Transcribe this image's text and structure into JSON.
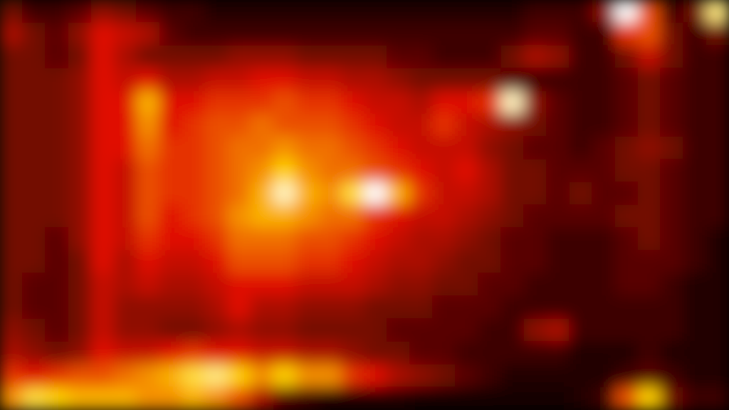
{
  "chart_data": {
    "type": "heatmap",
    "tick_labels": false,
    "zlim": [
      0,
      1
    ],
    "z": [
      [
        0.3,
        0.2,
        0.2,
        0.25,
        0.35,
        0.3,
        0.25,
        0.2,
        0.2,
        0.15,
        0.15,
        0.15,
        0.15,
        0.15,
        0.15,
        0.15,
        0.15,
        0.15,
        0.15,
        0.15,
        0.15,
        0.15,
        0.15,
        0.2,
        0.2,
        0.2,
        0.35,
        1.0,
        0.6,
        0.2,
        0.3,
        0.9
      ],
      [
        0.4,
        0.3,
        0.25,
        0.35,
        0.5,
        0.45,
        0.4,
        0.25,
        0.2,
        0.2,
        0.2,
        0.2,
        0.2,
        0.2,
        0.2,
        0.2,
        0.2,
        0.2,
        0.2,
        0.2,
        0.2,
        0.2,
        0.2,
        0.25,
        0.25,
        0.2,
        0.2,
        0.55,
        0.6,
        0.3,
        0.2,
        0.3
      ],
      [
        0.3,
        0.3,
        0.25,
        0.3,
        0.5,
        0.4,
        0.3,
        0.3,
        0.3,
        0.3,
        0.35,
        0.35,
        0.35,
        0.3,
        0.3,
        0.3,
        0.3,
        0.25,
        0.25,
        0.2,
        0.2,
        0.2,
        0.3,
        0.4,
        0.35,
        0.2,
        0.2,
        0.3,
        0.45,
        0.3,
        0.2,
        0.2
      ],
      [
        0.3,
        0.3,
        0.3,
        0.35,
        0.5,
        0.45,
        0.5,
        0.4,
        0.4,
        0.45,
        0.45,
        0.5,
        0.5,
        0.45,
        0.45,
        0.4,
        0.4,
        0.35,
        0.3,
        0.3,
        0.3,
        0.3,
        0.25,
        0.2,
        0.2,
        0.2,
        0.2,
        0.25,
        0.3,
        0.25,
        0.2,
        0.2
      ],
      [
        0.3,
        0.3,
        0.3,
        0.35,
        0.5,
        0.5,
        0.75,
        0.5,
        0.5,
        0.55,
        0.55,
        0.55,
        0.6,
        0.55,
        0.55,
        0.5,
        0.45,
        0.45,
        0.4,
        0.5,
        0.5,
        0.55,
        0.95,
        0.35,
        0.25,
        0.2,
        0.2,
        0.25,
        0.3,
        0.25,
        0.2,
        0.2
      ],
      [
        0.3,
        0.3,
        0.3,
        0.35,
        0.5,
        0.5,
        0.7,
        0.5,
        0.55,
        0.6,
        0.6,
        0.65,
        0.6,
        0.6,
        0.6,
        0.55,
        0.5,
        0.45,
        0.45,
        0.55,
        0.45,
        0.4,
        0.35,
        0.3,
        0.25,
        0.2,
        0.2,
        0.25,
        0.3,
        0.25,
        0.2,
        0.2
      ],
      [
        0.3,
        0.3,
        0.3,
        0.35,
        0.5,
        0.5,
        0.65,
        0.55,
        0.55,
        0.6,
        0.65,
        0.65,
        0.7,
        0.65,
        0.65,
        0.6,
        0.55,
        0.5,
        0.45,
        0.45,
        0.45,
        0.35,
        0.3,
        0.25,
        0.25,
        0.2,
        0.25,
        0.3,
        0.35,
        0.3,
        0.2,
        0.2
      ],
      [
        0.3,
        0.3,
        0.3,
        0.35,
        0.5,
        0.45,
        0.6,
        0.55,
        0.55,
        0.6,
        0.65,
        0.7,
        0.8,
        0.7,
        0.65,
        0.65,
        0.6,
        0.55,
        0.5,
        0.45,
        0.5,
        0.4,
        0.3,
        0.3,
        0.25,
        0.25,
        0.25,
        0.3,
        0.3,
        0.25,
        0.2,
        0.2
      ],
      [
        0.3,
        0.3,
        0.3,
        0.35,
        0.5,
        0.45,
        0.6,
        0.55,
        0.55,
        0.6,
        0.65,
        0.75,
        0.95,
        0.75,
        0.7,
        0.85,
        1.0,
        0.75,
        0.55,
        0.45,
        0.45,
        0.4,
        0.3,
        0.3,
        0.25,
        0.3,
        0.25,
        0.25,
        0.3,
        0.25,
        0.2,
        0.2
      ],
      [
        0.3,
        0.3,
        0.3,
        0.35,
        0.5,
        0.45,
        0.6,
        0.5,
        0.55,
        0.6,
        0.7,
        0.75,
        0.75,
        0.7,
        0.65,
        0.65,
        0.55,
        0.5,
        0.45,
        0.45,
        0.4,
        0.35,
        0.3,
        0.25,
        0.25,
        0.25,
        0.25,
        0.3,
        0.3,
        0.25,
        0.2,
        0.2
      ],
      [
        0.3,
        0.3,
        0.25,
        0.35,
        0.5,
        0.45,
        0.55,
        0.5,
        0.5,
        0.55,
        0.65,
        0.65,
        0.65,
        0.6,
        0.6,
        0.55,
        0.5,
        0.45,
        0.4,
        0.4,
        0.35,
        0.3,
        0.25,
        0.25,
        0.2,
        0.2,
        0.2,
        0.25,
        0.3,
        0.25,
        0.2,
        0.15
      ],
      [
        0.3,
        0.3,
        0.25,
        0.3,
        0.5,
        0.4,
        0.5,
        0.45,
        0.45,
        0.5,
        0.6,
        0.6,
        0.6,
        0.55,
        0.55,
        0.5,
        0.45,
        0.4,
        0.4,
        0.35,
        0.3,
        0.3,
        0.25,
        0.25,
        0.2,
        0.2,
        0.2,
        0.25,
        0.25,
        0.25,
        0.2,
        0.15
      ],
      [
        0.3,
        0.25,
        0.25,
        0.3,
        0.45,
        0.4,
        0.45,
        0.4,
        0.4,
        0.45,
        0.5,
        0.5,
        0.5,
        0.45,
        0.45,
        0.45,
        0.4,
        0.35,
        0.35,
        0.3,
        0.3,
        0.25,
        0.25,
        0.2,
        0.2,
        0.2,
        0.2,
        0.25,
        0.25,
        0.2,
        0.15,
        0.15
      ],
      [
        0.3,
        0.25,
        0.25,
        0.3,
        0.45,
        0.35,
        0.35,
        0.35,
        0.35,
        0.4,
        0.5,
        0.4,
        0.4,
        0.35,
        0.35,
        0.35,
        0.3,
        0.3,
        0.3,
        0.25,
        0.25,
        0.25,
        0.2,
        0.2,
        0.2,
        0.2,
        0.2,
        0.2,
        0.2,
        0.2,
        0.15,
        0.15
      ],
      [
        0.35,
        0.3,
        0.25,
        0.3,
        0.45,
        0.35,
        0.35,
        0.3,
        0.3,
        0.35,
        0.4,
        0.35,
        0.35,
        0.3,
        0.3,
        0.3,
        0.3,
        0.25,
        0.25,
        0.25,
        0.25,
        0.2,
        0.2,
        0.35,
        0.4,
        0.2,
        0.2,
        0.2,
        0.2,
        0.2,
        0.15,
        0.15
      ],
      [
        0.4,
        0.35,
        0.3,
        0.35,
        0.5,
        0.45,
        0.45,
        0.5,
        0.55,
        0.5,
        0.5,
        0.45,
        0.45,
        0.4,
        0.4,
        0.35,
        0.3,
        0.3,
        0.25,
        0.25,
        0.2,
        0.2,
        0.2,
        0.2,
        0.2,
        0.15,
        0.15,
        0.15,
        0.2,
        0.15,
        0.15,
        0.15
      ],
      [
        0.55,
        0.5,
        0.55,
        0.6,
        0.6,
        0.65,
        0.7,
        0.75,
        0.85,
        0.9,
        0.8,
        0.7,
        0.8,
        0.7,
        0.7,
        0.55,
        0.5,
        0.4,
        0.35,
        0.3,
        0.25,
        0.2,
        0.15,
        0.15,
        0.15,
        0.15,
        0.15,
        0.2,
        0.25,
        0.2,
        0.15,
        0.15
      ],
      [
        0.7,
        0.85,
        0.8,
        0.75,
        0.75,
        0.75,
        0.7,
        0.7,
        0.75,
        0.7,
        0.6,
        0.4,
        0.25,
        0.2,
        0.15,
        0.15,
        0.15,
        0.15,
        0.1,
        0.1,
        0.1,
        0.1,
        0.1,
        0.1,
        0.1,
        0.15,
        0.2,
        0.6,
        0.8,
        0.3,
        0.2,
        0.2
      ]
    ]
  }
}
